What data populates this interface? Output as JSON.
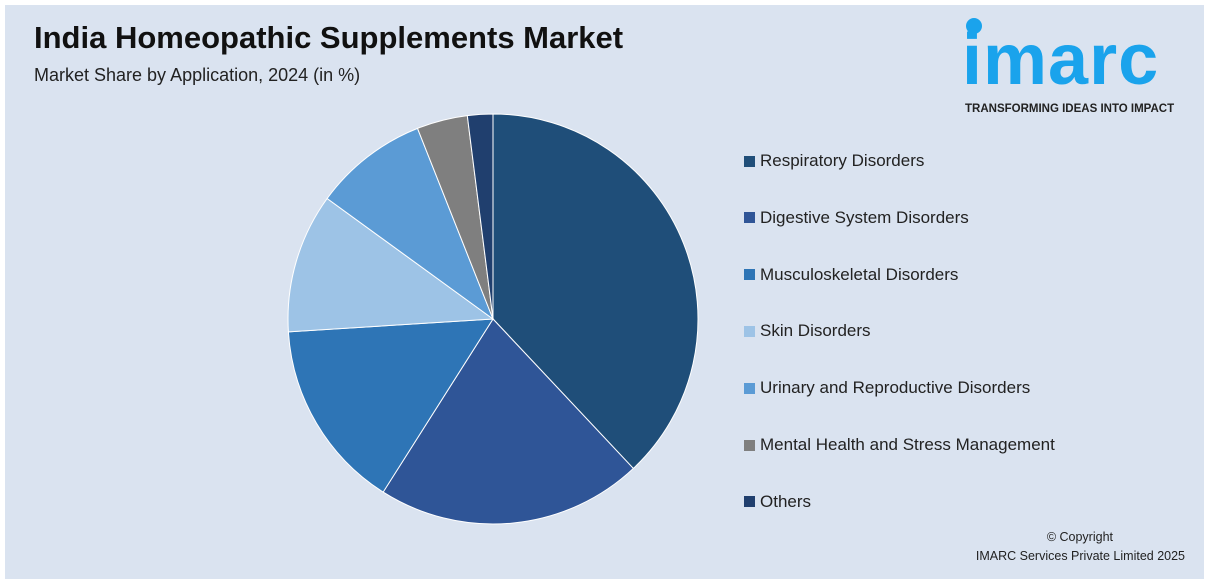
{
  "header": {
    "title": "India Homeopathic Supplements Market",
    "subtitle": "Market Share by Application, 2024 (in %)"
  },
  "logo": {
    "word": "imarc",
    "tagline": "TRANSFORMING IDEAS INTO IMPACT",
    "color": "#1aa3ec"
  },
  "footer": {
    "copyright": "© Copyright",
    "company": "IMARC Services Private Limited 2025"
  },
  "chart_data": {
    "type": "pie",
    "title": "India Homeopathic Supplements Market",
    "subtitle": "Market Share by Application, 2024 (in %)",
    "categories": [
      "Respiratory Disorders",
      "Digestive System Disorders",
      "Musculoskeletal Disorders",
      "Skin Disorders",
      "Urinary and Reproductive Disorders",
      "Mental Health and Stress Management",
      "Others"
    ],
    "values": [
      38,
      21,
      15,
      11,
      9,
      4,
      2
    ],
    "colors": [
      "#1f4e79",
      "#2f5597",
      "#2e75b6",
      "#9dc3e6",
      "#5b9bd5",
      "#7f7f7f",
      "#203f6e"
    ],
    "start_angle": "12 o'clock",
    "direction": "clockwise",
    "legend_position": "right"
  }
}
